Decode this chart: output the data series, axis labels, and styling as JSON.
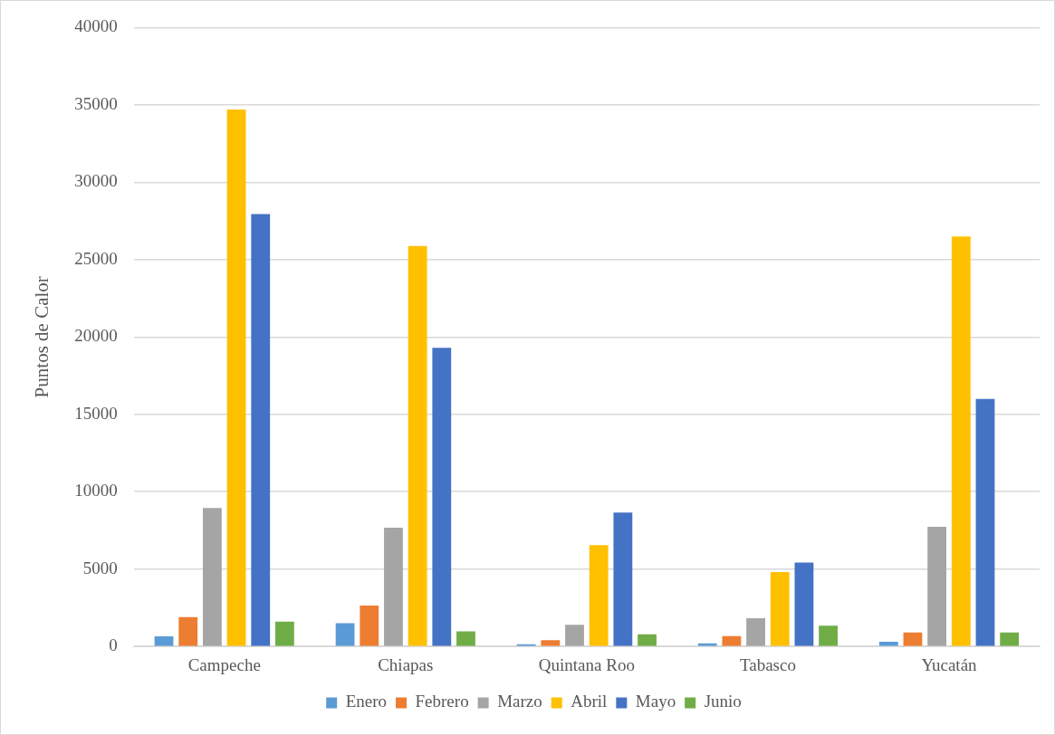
{
  "chart_data": {
    "type": "bar",
    "ylabel": "Puntos de Calor",
    "categories": [
      "Campeche",
      "Chiapas",
      "Quintana Roo",
      "Tabasco",
      "Yucatán"
    ],
    "series": [
      {
        "name": "Enero",
        "color": "#5b9bd5",
        "values": [
          650,
          1500,
          150,
          200,
          300
        ]
      },
      {
        "name": "Febrero",
        "color": "#ed7d31",
        "values": [
          1900,
          2650,
          400,
          670,
          910
        ]
      },
      {
        "name": "Marzo",
        "color": "#a5a5a5",
        "values": [
          8950,
          7670,
          1400,
          1830,
          7730
        ]
      },
      {
        "name": "Abril",
        "color": "#ffc000",
        "values": [
          34700,
          25880,
          6550,
          4810,
          26500
        ]
      },
      {
        "name": "Mayo",
        "color": "#4472c4",
        "values": [
          27950,
          19300,
          8650,
          5420,
          16000
        ]
      },
      {
        "name": "Junio",
        "color": "#70ad47",
        "values": [
          1600,
          980,
          790,
          1340,
          910
        ]
      }
    ],
    "ylim": [
      0,
      40000
    ],
    "yticks": [
      0,
      5000,
      10000,
      15000,
      20000,
      25000,
      30000,
      35000,
      40000
    ],
    "grid": "y",
    "legend": "bottom"
  }
}
